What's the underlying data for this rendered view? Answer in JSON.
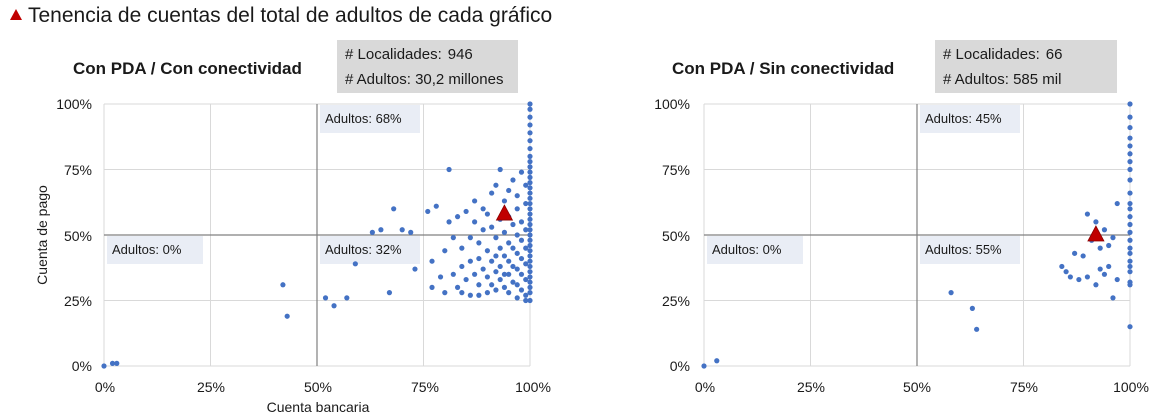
{
  "figure_title": "Tenencia de cuentas del total de adultos de cada gráfico",
  "colors": {
    "point": "#4472c4",
    "marker": "#c00000",
    "grid": "#d9d9d9",
    "box": "#d9d9d9",
    "label_bg": "#e9edf5"
  },
  "chart_data": [
    {
      "type": "scatter",
      "title": "Con PDA / Con conectividad",
      "xlabel": "Cuenta bancaria",
      "ylabel": "Cuenta de pago",
      "xlim": [
        0,
        100
      ],
      "ylim": [
        0,
        100
      ],
      "xticks": [
        "0%",
        "25%",
        "50%",
        "75%",
        "100%"
      ],
      "yticks": [
        "0%",
        "25%",
        "50%",
        "75%",
        "100%"
      ],
      "stats": {
        "localidades_label": "# Localidades:",
        "localidades": "946",
        "adultos_label": "# Adultos:",
        "adultos": "30,2 millones"
      },
      "quadrant_labels": {
        "top_right": "Adultos: 68%",
        "bottom_left": "Adultos: 0%",
        "bottom_right": "Adultos: 32%"
      },
      "marker": {
        "x": 94,
        "y": 58
      },
      "points": [
        [
          0,
          0
        ],
        [
          2,
          1
        ],
        [
          3,
          1
        ],
        [
          42,
          31
        ],
        [
          43,
          19
        ],
        [
          52,
          26
        ],
        [
          54,
          23
        ],
        [
          57,
          26
        ],
        [
          59,
          39
        ],
        [
          63,
          51
        ],
        [
          65,
          52
        ],
        [
          67,
          28
        ],
        [
          68,
          60
        ],
        [
          70,
          52
        ],
        [
          72,
          51
        ],
        [
          73,
          37
        ],
        [
          76,
          59
        ],
        [
          77,
          40
        ],
        [
          77,
          30
        ],
        [
          78,
          61
        ],
        [
          79,
          34
        ],
        [
          80,
          44
        ],
        [
          80,
          28
        ],
        [
          81,
          75
        ],
        [
          81,
          55
        ],
        [
          82,
          49
        ],
        [
          82,
          35
        ],
        [
          83,
          57
        ],
        [
          83,
          30
        ],
        [
          84,
          45
        ],
        [
          84,
          38
        ],
        [
          84,
          28
        ],
        [
          85,
          59
        ],
        [
          85,
          33
        ],
        [
          86,
          49
        ],
        [
          86,
          40
        ],
        [
          86,
          27
        ],
        [
          87,
          63
        ],
        [
          87,
          55
        ],
        [
          87,
          35
        ],
        [
          88,
          47
        ],
        [
          88,
          41
        ],
        [
          88,
          31
        ],
        [
          88,
          27
        ],
        [
          89,
          60
        ],
        [
          89,
          52
        ],
        [
          89,
          37
        ],
        [
          90,
          44
        ],
        [
          90,
          34
        ],
        [
          90,
          28
        ],
        [
          90,
          58
        ],
        [
          91,
          53
        ],
        [
          91,
          40
        ],
        [
          91,
          31
        ],
        [
          91,
          66
        ],
        [
          92,
          49
        ],
        [
          92,
          42
        ],
        [
          92,
          36
        ],
        [
          92,
          29
        ],
        [
          92,
          69
        ],
        [
          93,
          56
        ],
        [
          93,
          45
        ],
        [
          93,
          38
        ],
        [
          93,
          33
        ],
        [
          93,
          75
        ],
        [
          94,
          51
        ],
        [
          94,
          42
        ],
        [
          94,
          35
        ],
        [
          94,
          30
        ],
        [
          94,
          63
        ],
        [
          95,
          57
        ],
        [
          95,
          47
        ],
        [
          95,
          40
        ],
        [
          95,
          35
        ],
        [
          95,
          28
        ],
        [
          95,
          67
        ],
        [
          96,
          54
        ],
        [
          96,
          45
        ],
        [
          96,
          38
        ],
        [
          96,
          32
        ],
        [
          96,
          71
        ],
        [
          97,
          60
        ],
        [
          97,
          50
        ],
        [
          97,
          43
        ],
        [
          97,
          37
        ],
        [
          97,
          31
        ],
        [
          97,
          26
        ],
        [
          97,
          65
        ],
        [
          98,
          55
        ],
        [
          98,
          48
        ],
        [
          98,
          41
        ],
        [
          98,
          35
        ],
        [
          98,
          29
        ],
        [
          98,
          74
        ],
        [
          99,
          62
        ],
        [
          99,
          52
        ],
        [
          99,
          45
        ],
        [
          99,
          39
        ],
        [
          99,
          33
        ],
        [
          99,
          27
        ],
        [
          99,
          69
        ],
        [
          99,
          25
        ],
        [
          100,
          25
        ],
        [
          100,
          28
        ],
        [
          100,
          30
        ],
        [
          100,
          32
        ],
        [
          100,
          34
        ],
        [
          100,
          36
        ],
        [
          100,
          38
        ],
        [
          100,
          40
        ],
        [
          100,
          42
        ],
        [
          100,
          44
        ],
        [
          100,
          46
        ],
        [
          100,
          48
        ],
        [
          100,
          50
        ],
        [
          100,
          52
        ],
        [
          100,
          54
        ],
        [
          100,
          56
        ],
        [
          100,
          58
        ],
        [
          100,
          60
        ],
        [
          100,
          62
        ],
        [
          100,
          64
        ],
        [
          100,
          66
        ],
        [
          100,
          68
        ],
        [
          100,
          70
        ],
        [
          100,
          72
        ],
        [
          100,
          74
        ],
        [
          100,
          76
        ],
        [
          100,
          78
        ],
        [
          100,
          80
        ],
        [
          100,
          83
        ],
        [
          100,
          86
        ],
        [
          100,
          89
        ],
        [
          100,
          92
        ],
        [
          100,
          95
        ],
        [
          100,
          98
        ],
        [
          100,
          100
        ]
      ]
    },
    {
      "type": "scatter",
      "title": "Con PDA / Sin conectividad",
      "xlabel": "",
      "ylabel": "",
      "xlim": [
        0,
        100
      ],
      "ylim": [
        0,
        100
      ],
      "xticks": [
        "0%",
        "25%",
        "50%",
        "75%",
        "100%"
      ],
      "yticks": [
        "0%",
        "25%",
        "50%",
        "75%",
        "100%"
      ],
      "stats": {
        "localidades_label": "# Localidades:",
        "localidades": "66",
        "adultos_label": "# Adultos:",
        "adultos": "585 mil"
      },
      "quadrant_labels": {
        "top_right": "Adultos: 45%",
        "bottom_left": "Adultos: 0%",
        "bottom_right": "Adultos: 55%"
      },
      "marker": {
        "x": 92,
        "y": 50
      },
      "points": [
        [
          0,
          0
        ],
        [
          3,
          2
        ],
        [
          58,
          28
        ],
        [
          63,
          22
        ],
        [
          64,
          14
        ],
        [
          84,
          38
        ],
        [
          85,
          36
        ],
        [
          86,
          34
        ],
        [
          87,
          43
        ],
        [
          88,
          33
        ],
        [
          89,
          42
        ],
        [
          90,
          58
        ],
        [
          90,
          34
        ],
        [
          91,
          48
        ],
        [
          92,
          31
        ],
        [
          92,
          55
        ],
        [
          93,
          45
        ],
        [
          93,
          37
        ],
        [
          94,
          35
        ],
        [
          94,
          52
        ],
        [
          95,
          38
        ],
        [
          95,
          46
        ],
        [
          96,
          26
        ],
        [
          96,
          49
        ],
        [
          97,
          33
        ],
        [
          97,
          62
        ],
        [
          100,
          15
        ],
        [
          100,
          31
        ],
        [
          100,
          32
        ],
        [
          100,
          36
        ],
        [
          100,
          38
        ],
        [
          100,
          40
        ],
        [
          100,
          43
        ],
        [
          100,
          45
        ],
        [
          100,
          48
        ],
        [
          100,
          51
        ],
        [
          100,
          54
        ],
        [
          100,
          57
        ],
        [
          100,
          60
        ],
        [
          100,
          62
        ],
        [
          100,
          66
        ],
        [
          100,
          71
        ],
        [
          100,
          75
        ],
        [
          100,
          78
        ],
        [
          100,
          81
        ],
        [
          100,
          84
        ],
        [
          100,
          87
        ],
        [
          100,
          91
        ],
        [
          100,
          95
        ],
        [
          100,
          100
        ]
      ]
    }
  ]
}
